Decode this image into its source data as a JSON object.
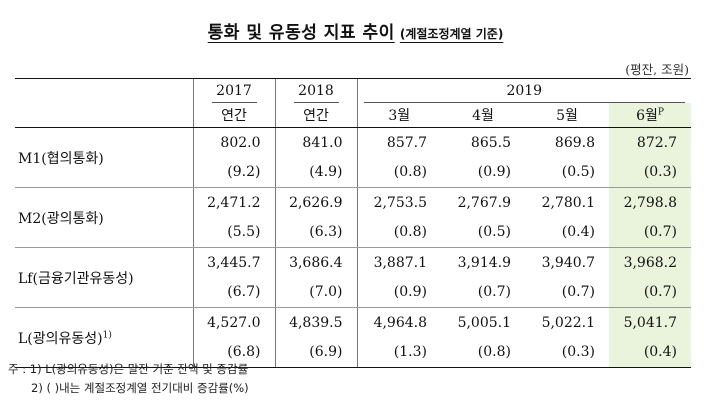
{
  "title": {
    "main": "통화 및 유동성 지표 추이",
    "sub": "(계절조정계열 기준)"
  },
  "unit": "(평잔, 조원)",
  "header": {
    "years": [
      "2017",
      "2018",
      "2019"
    ],
    "periods": [
      "연간",
      "연간",
      "3월",
      "4월",
      "5월",
      "6월"
    ],
    "preliminary_mark": "P"
  },
  "rows": [
    {
      "label": "M1(협의통화)",
      "footnote": "",
      "values": [
        "802.0",
        "841.0",
        "857.7",
        "865.5",
        "869.8",
        "872.7"
      ],
      "changes": [
        "(9.2)",
        "(4.9)",
        "(0.8)",
        "(0.9)",
        "(0.5)",
        "(0.3)"
      ]
    },
    {
      "label": "M2(광의통화)",
      "footnote": "",
      "values": [
        "2,471.2",
        "2,626.9",
        "2,753.5",
        "2,767.9",
        "2,780.1",
        "2,798.8"
      ],
      "changes": [
        "(5.5)",
        "(6.3)",
        "(0.8)",
        "(0.5)",
        "(0.4)",
        "(0.7)"
      ]
    },
    {
      "label": "Lf(금융기관유동성)",
      "footnote": "",
      "values": [
        "3,445.7",
        "3,686.4",
        "3,887.1",
        "3,914.9",
        "3,940.7",
        "3,968.2"
      ],
      "changes": [
        "(6.7)",
        "(7.0)",
        "(0.9)",
        "(0.7)",
        "(0.7)",
        "(0.7)"
      ]
    },
    {
      "label": "L(광의유동성)",
      "footnote": "1)",
      "values": [
        "4,527.0",
        "4,839.5",
        "4,964.8",
        "5,005.1",
        "5,022.1",
        "5,041.7"
      ],
      "changes": [
        "(6.8)",
        "(6.9)",
        "(1.3)",
        "(0.8)",
        "(0.3)",
        "(0.4)"
      ]
    }
  ],
  "notes": [
    "주 : 1) L(광의유동성)은 말잔 기준 잔액 및 증감률",
    "2) (    )내는 계절조정계열 전기대비 증감률(%)"
  ],
  "colors": {
    "highlight": "#eaf4dc"
  }
}
